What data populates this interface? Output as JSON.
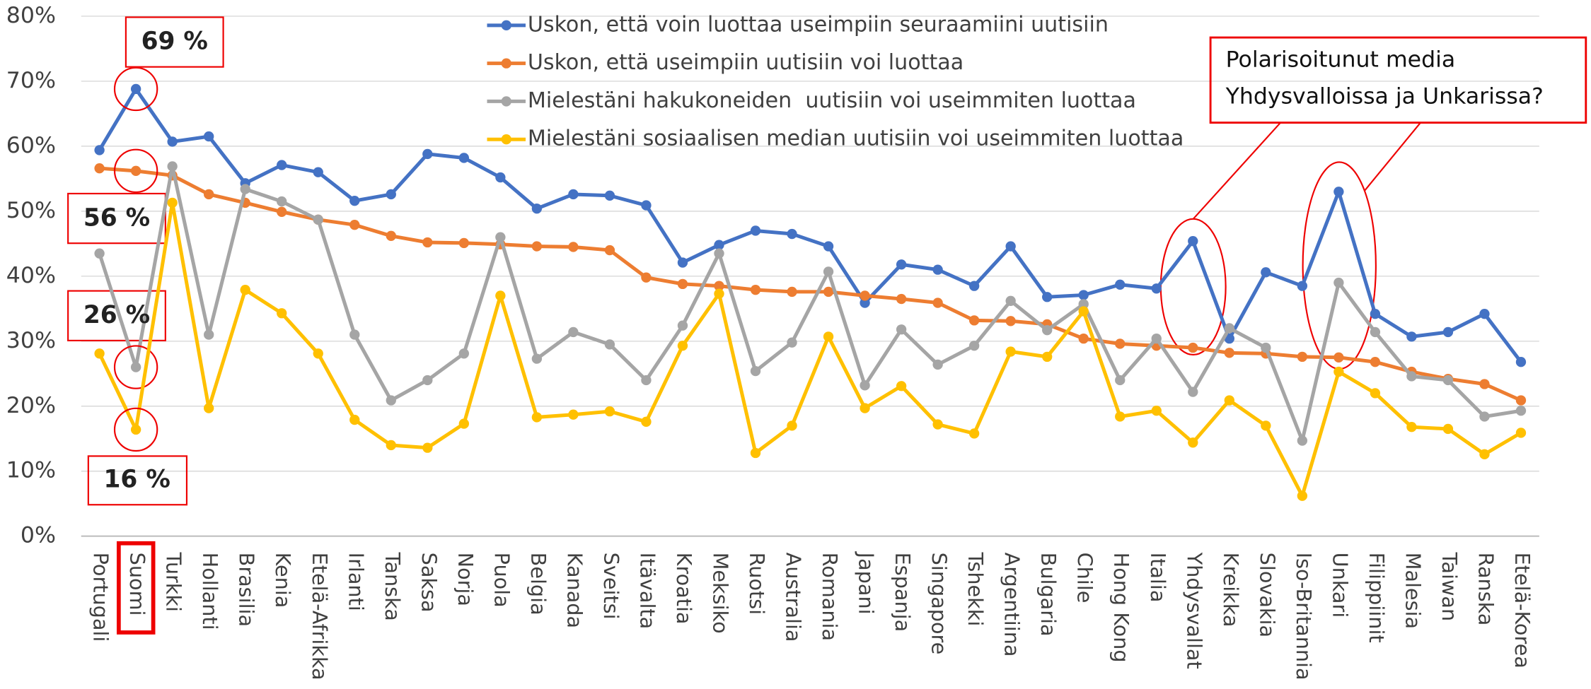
{
  "chart_data": {
    "type": "line",
    "categories": [
      "Portugali",
      "Suomi",
      "Turkki",
      "Hollanti",
      "Brasilia",
      "Kenia",
      "Etelä-Afrikka",
      "Irlanti",
      "Tanska",
      "Saksa",
      "Norja",
      "Puola",
      "Belgia",
      "Kanada",
      "Sveitsi",
      "Itävalta",
      "Kroatia",
      "Meksiko",
      "Ruotsi",
      "Australia",
      "Romania",
      "Japani",
      "Espanja",
      "Singapore",
      "Tshekki",
      "Argentiina",
      "Bulgaria",
      "Chile",
      "Hong Kong",
      "Italia",
      "Yhdysvallat",
      "Kreikka",
      "Slovakia",
      "Iso-Britannia",
      "Unkari",
      "Filippiinit",
      "Malesia",
      "Taiwan",
      "Ranska",
      "Etelä-Korea"
    ],
    "series": [
      {
        "name": "Uskon, että voin luottaa useimpiin seuraamiini uutisiin",
        "color": "#4472c4",
        "values": [
          59.4,
          68.8,
          60.7,
          61.5,
          54.3,
          57.1,
          56,
          51.6,
          52.6,
          58.8,
          58.2,
          55.2,
          50.4,
          52.6,
          52.4,
          50.9,
          42.1,
          44.8,
          47,
          46.5,
          44.6,
          35.9,
          41.8,
          41,
          38.5,
          44.6,
          36.8,
          37.1,
          38.7,
          38.1,
          45.4,
          30.4,
          40.6,
          38.5,
          53,
          34.2,
          30.7,
          31.4,
          34.2,
          26.8
        ],
        "value_labels": [
          null,
          "69 %",
          null,
          null,
          null,
          null,
          null,
          null,
          null,
          null,
          null,
          null,
          null,
          null,
          null,
          null,
          null,
          null,
          null,
          null,
          null,
          null,
          null,
          null,
          null,
          null,
          null,
          null,
          null,
          null,
          null,
          null,
          null,
          null,
          null,
          null,
          null,
          null,
          null,
          null
        ]
      },
      {
        "name": "Uskon, että useimpiin uutisiin voi luottaa",
        "color": "#ed7d31",
        "values": [
          56.6,
          56.2,
          55.5,
          52.6,
          51.3,
          49.9,
          48.7,
          47.9,
          46.2,
          45.2,
          45.1,
          44.9,
          44.6,
          44.5,
          44,
          39.8,
          38.8,
          38.5,
          37.9,
          37.6,
          37.6,
          37,
          36.5,
          35.9,
          33.2,
          33.1,
          32.6,
          30.4,
          29.6,
          29.3,
          29,
          28.2,
          28.1,
          27.6,
          27.5,
          26.8,
          25.3,
          24.2,
          23.4,
          20.9
        ],
        "value_labels": [
          null,
          "56 %",
          null,
          null,
          null,
          null,
          null,
          null,
          null,
          null,
          null,
          null,
          null,
          null,
          null,
          null,
          null,
          null,
          null,
          null,
          null,
          null,
          null,
          null,
          null,
          null,
          null,
          null,
          null,
          null,
          null,
          null,
          null,
          null,
          null,
          null,
          null,
          null,
          null,
          null
        ]
      },
      {
        "name": "Mielestäni hakukoneiden  uutisiin voi useimmiten luottaa",
        "color": "#a5a5a5",
        "values": [
          43.5,
          26,
          56.9,
          31,
          53.4,
          51.5,
          48.7,
          31,
          20.9,
          24,
          28.1,
          46,
          27.3,
          31.4,
          29.5,
          24,
          32.4,
          43.5,
          25.4,
          29.8,
          40.7,
          23.2,
          31.8,
          26.4,
          29.3,
          36.2,
          31.7,
          35.7,
          24,
          30.4,
          22.2,
          32,
          29,
          14.7,
          39,
          31.4,
          24.6,
          24,
          18.4,
          19.3
        ],
        "value_labels": [
          null,
          "26 %",
          null,
          null,
          null,
          null,
          null,
          null,
          null,
          null,
          null,
          null,
          null,
          null,
          null,
          null,
          null,
          null,
          null,
          null,
          null,
          null,
          null,
          null,
          null,
          null,
          null,
          null,
          null,
          null,
          null,
          null,
          null,
          null,
          null,
          null,
          null,
          null,
          null,
          null
        ]
      },
      {
        "name": "Mielestäni sosiaalisen median uutisiin voi useimmiten luottaa",
        "color": "#ffc000",
        "values": [
          28.1,
          16.4,
          51.3,
          19.7,
          37.9,
          34.3,
          28.1,
          17.9,
          14,
          13.6,
          17.3,
          37,
          18.3,
          18.7,
          19.2,
          17.6,
          29.3,
          37.3,
          12.8,
          17,
          30.7,
          19.7,
          23.1,
          17.2,
          15.8,
          28.4,
          27.6,
          34.6,
          18.4,
          19.3,
          14.4,
          20.9,
          17,
          6.2,
          25.3,
          22,
          16.8,
          16.5,
          12.6,
          15.9
        ],
        "value_labels": [
          null,
          "16 %",
          null,
          null,
          null,
          null,
          null,
          null,
          null,
          null,
          null,
          null,
          null,
          null,
          null,
          null,
          null,
          null,
          null,
          null,
          null,
          null,
          null,
          null,
          null,
          null,
          null,
          null,
          null,
          null,
          null,
          null,
          null,
          null,
          null,
          null,
          null,
          null,
          null,
          null
        ]
      }
    ],
    "ylim": [
      0,
      80
    ],
    "yticks": [
      {
        "value": 0,
        "label": "0%"
      },
      {
        "value": 10,
        "label": "10%"
      },
      {
        "value": 20,
        "label": "20%"
      },
      {
        "value": 30,
        "label": "30%"
      },
      {
        "value": 40,
        "label": "40%"
      },
      {
        "value": 50,
        "label": "50%"
      },
      {
        "value": 60,
        "label": "60%"
      },
      {
        "value": 70,
        "label": "70%"
      },
      {
        "value": 80,
        "label": "80%"
      }
    ],
    "grid": true,
    "legend": "top",
    "annotation": "Polarisoitunut media Yhdysvalloissa ja Unkarissa?"
  }
}
